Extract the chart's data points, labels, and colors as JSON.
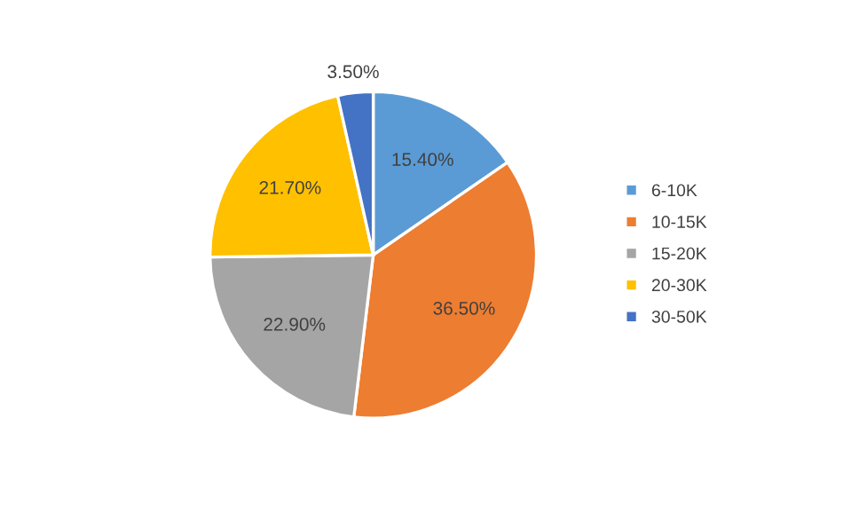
{
  "chart_data": {
    "type": "pie",
    "categories": [
      "6-10K",
      "10-15K",
      "15-20K",
      "20-30K",
      "30-50K"
    ],
    "values": [
      15.4,
      36.5,
      22.9,
      21.7,
      3.5
    ],
    "value_labels": [
      "15.40%",
      "36.50%",
      "22.90%",
      "21.70%",
      "3.50%"
    ],
    "colors": [
      "#5b9bd5",
      "#ed7d31",
      "#a5a5a5",
      "#ffc000",
      "#4472c4"
    ],
    "legend": "right"
  }
}
